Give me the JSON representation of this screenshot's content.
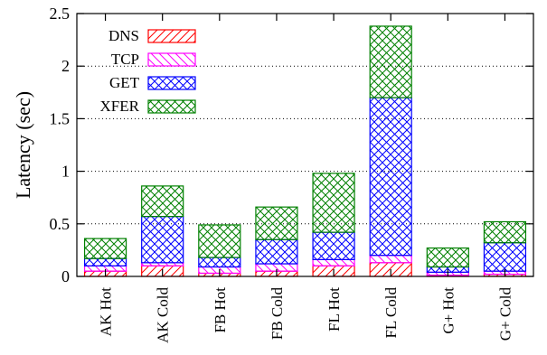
{
  "chart_data": {
    "type": "bar",
    "stacked": true,
    "categories": [
      "AK Hot",
      "AK Cold",
      "FB Hot",
      "FB Cold",
      "FL Hot",
      "FL Cold",
      "G+ Hot",
      "G+ Cold"
    ],
    "series": [
      {
        "name": "DNS",
        "color": "#ff0000",
        "pattern": "diagonal-right",
        "values": [
          0.05,
          0.1,
          0.03,
          0.05,
          0.1,
          0.13,
          0.01,
          0.02
        ]
      },
      {
        "name": "TCP",
        "color": "#ff00ff",
        "pattern": "diagonal-left",
        "values": [
          0.05,
          0.03,
          0.06,
          0.07,
          0.06,
          0.07,
          0.03,
          0.03
        ]
      },
      {
        "name": "GET",
        "color": "#0000ff",
        "pattern": "crosshatch",
        "values": [
          0.07,
          0.44,
          0.09,
          0.23,
          0.26,
          1.5,
          0.05,
          0.27
        ]
      },
      {
        "name": "XFER",
        "color": "#008000",
        "pattern": "crosshatch",
        "values": [
          0.19,
          0.29,
          0.31,
          0.31,
          0.56,
          0.68,
          0.18,
          0.2
        ]
      }
    ],
    "xlabel": "",
    "ylabel": "Latency (sec)",
    "ylim": [
      0,
      2.5
    ],
    "yticks": [
      "0",
      "0.5",
      "1",
      "1.5",
      "2",
      "2.5"
    ],
    "grid": "horizontal-dotted",
    "legend_position": "top-left"
  }
}
